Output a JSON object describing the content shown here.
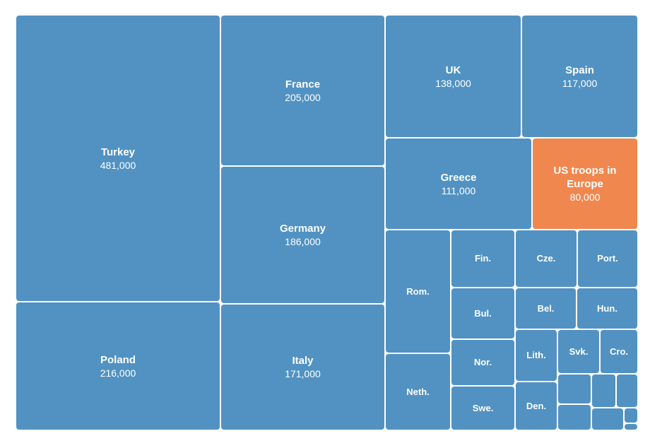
{
  "colors": {
    "default": "#5192c2",
    "highlight": "#f0874f"
  },
  "chart_data": {
    "type": "treemap",
    "items": [
      {
        "name": "Turkey",
        "value_label": "481,000",
        "value": 481000
      },
      {
        "name": "France",
        "value_label": "205,000",
        "value": 205000
      },
      {
        "name": "UK",
        "value_label": "138,000",
        "value": 138000
      },
      {
        "name": "Spain",
        "value_label": "117,000",
        "value": 117000
      },
      {
        "name": "Greece",
        "value_label": "111,000",
        "value": 111000
      },
      {
        "name": "US troops in Europe",
        "value_label": "80,000",
        "value": 80000,
        "highlight": true
      },
      {
        "name": "Germany",
        "value_label": "186,000",
        "value": 186000
      },
      {
        "name": "Poland",
        "value_label": "216,000",
        "value": 216000
      },
      {
        "name": "Italy",
        "value_label": "171,000",
        "value": 171000
      },
      {
        "name": "Rom."
      },
      {
        "name": "Neth."
      },
      {
        "name": "Fin."
      },
      {
        "name": "Cze."
      },
      {
        "name": "Port."
      },
      {
        "name": "Bul."
      },
      {
        "name": "Bel."
      },
      {
        "name": "Hun."
      },
      {
        "name": "Nor."
      },
      {
        "name": "Lith."
      },
      {
        "name": "Svk."
      },
      {
        "name": "Cro."
      },
      {
        "name": "Swe."
      },
      {
        "name": "Den."
      },
      {
        "name": ""
      },
      {
        "name": ""
      },
      {
        "name": ""
      },
      {
        "name": ""
      },
      {
        "name": ""
      },
      {
        "name": ""
      },
      {
        "name": ""
      }
    ]
  }
}
